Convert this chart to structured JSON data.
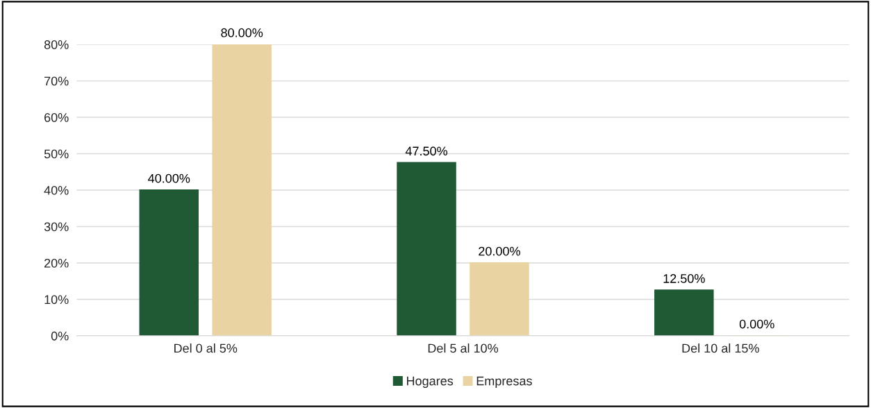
{
  "chart_data": {
    "type": "bar",
    "categories": [
      "Del 0 al 5%",
      "Del 5 al 10%",
      "Del 10 al 15%"
    ],
    "series": [
      {
        "name": "Hogares",
        "color": "#1f5a34",
        "values": [
          40,
          47.5,
          12.5
        ],
        "value_labels": [
          "40.00%",
          "47.50%",
          "12.50%"
        ]
      },
      {
        "name": "Empresas",
        "color": "#ead3a2",
        "values": [
          80,
          20,
          0
        ],
        "value_labels": [
          "80.00%",
          "20.00%",
          "0.00%"
        ]
      }
    ],
    "ylim": [
      0,
      80
    ],
    "yticks": [
      {
        "value": 0,
        "label": "0%"
      },
      {
        "value": 10,
        "label": "10%"
      },
      {
        "value": 20,
        "label": "20%"
      },
      {
        "value": 30,
        "label": "30%"
      },
      {
        "value": 40,
        "label": "40%"
      },
      {
        "value": 50,
        "label": "50%"
      },
      {
        "value": 60,
        "label": "60%"
      },
      {
        "value": 70,
        "label": "70%"
      },
      {
        "value": 80,
        "label": "80%"
      }
    ],
    "grid": "y",
    "legend": "bottom"
  }
}
